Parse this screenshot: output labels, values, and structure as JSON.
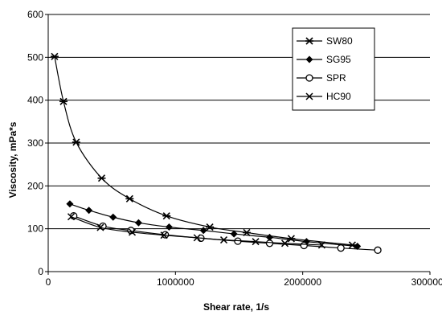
{
  "chart_data": {
    "type": "scatter",
    "title": "",
    "xlabel": "Shear rate, 1/s",
    "ylabel": "Viscosity, mPa*s",
    "xlim": [
      0,
      3000000
    ],
    "ylim": [
      0,
      600
    ],
    "xticks": [
      0,
      1000000,
      2000000,
      3000000
    ],
    "yticks": [
      0,
      100,
      200,
      300,
      400,
      500,
      600
    ],
    "grid": "horizontal",
    "legend_position": "right",
    "series": [
      {
        "name": "SW80",
        "marker": "asterisk",
        "color": "#000000",
        "x": [
          50000,
          120000,
          220000,
          420000,
          640000,
          930000,
          1270000,
          1560000,
          1910000,
          2390000
        ],
        "y": [
          502,
          397,
          302,
          218,
          170,
          130,
          104,
          91,
          77,
          62
        ]
      },
      {
        "name": "SG95",
        "marker": "diamond",
        "color": "#000000",
        "x": [
          170000,
          320000,
          510000,
          710000,
          950000,
          1220000,
          1460000,
          1740000,
          2030000,
          2430000
        ],
        "y": [
          158,
          143,
          127,
          114,
          104,
          96,
          88,
          80,
          70,
          59
        ]
      },
      {
        "name": "SPR",
        "marker": "circle",
        "color": "#000000",
        "x": [
          200000,
          430000,
          650000,
          920000,
          1200000,
          1490000,
          1740000,
          2010000,
          2300000,
          2590000
        ],
        "y": [
          130,
          106,
          96,
          86,
          78,
          71,
          66,
          61,
          55,
          50
        ]
      },
      {
        "name": "HC90",
        "marker": "x",
        "color": "#000000",
        "x": [
          180000,
          410000,
          660000,
          910000,
          1170000,
          1380000,
          1630000,
          1860000,
          2150000
        ],
        "y": [
          128,
          103,
          92,
          85,
          79,
          74,
          70,
          66,
          62
        ]
      }
    ]
  }
}
